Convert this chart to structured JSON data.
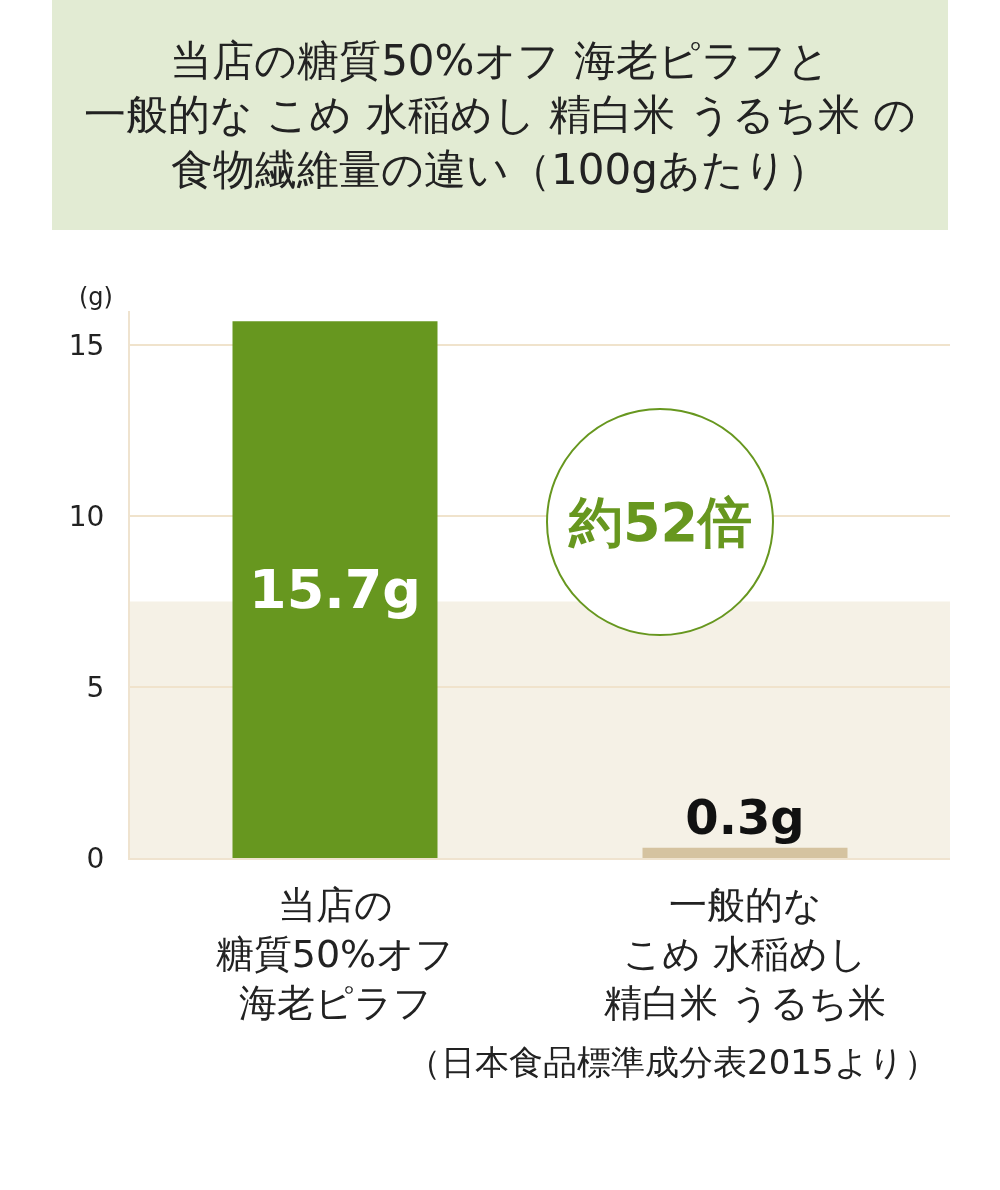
{
  "chart_data": {
    "type": "bar",
    "title": "当店の糖質50%オフ 海老ピラフと一般的な こめ 水稲めし 精白米 うるち米 の食物繊維量の違い（100gあたり）",
    "ylabel": "(g)",
    "categories": [
      "当店の糖質50%オフ海老ピラフ",
      "一般的なこめ 水稲めし精白米 うるち米"
    ],
    "values": [
      15.7,
      0.3
    ],
    "colors": [
      "#67971f",
      "#d5c3a0"
    ],
    "value_labels": [
      "15.7g",
      "0.3g"
    ],
    "ylim": [
      0,
      16
    ],
    "yticks": [
      0,
      5,
      10,
      15
    ],
    "grid": "y",
    "bands": [
      {
        "axis": "y",
        "from": 0,
        "to": 7.5,
        "color": "#f5f1e6"
      }
    ],
    "annotations": [
      "約52倍",
      "（日本食品標準成分表2015より）"
    ]
  }
}
